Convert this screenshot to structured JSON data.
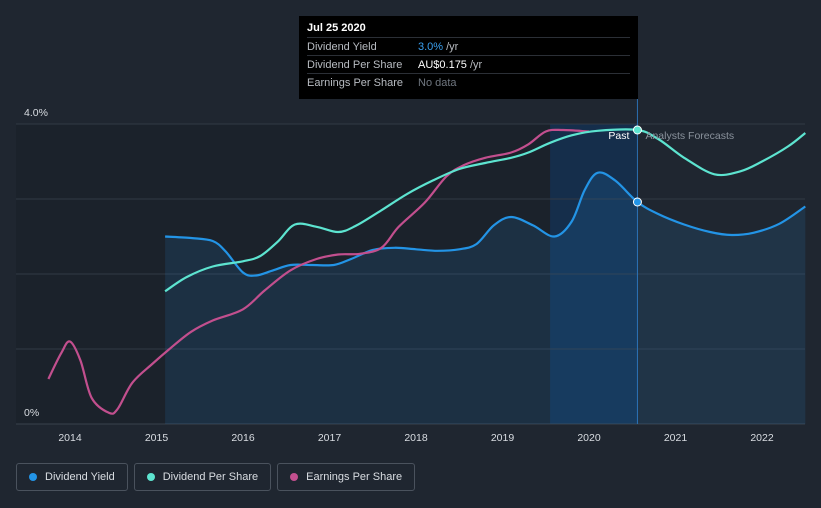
{
  "colors": {
    "background": "#1f2630",
    "dividend_yield": "#2394e6",
    "dividend_per_share": "#5de4d0",
    "earnings_per_share": "#c24f8e"
  },
  "tooltip": {
    "date": "Jul 25 2020",
    "rows": [
      {
        "label": "Dividend Yield",
        "value": "3.0%",
        "unit": "/yr"
      },
      {
        "label": "Dividend Per Share",
        "value": "AU$0.175",
        "unit": "/yr"
      },
      {
        "label": "Earnings Per Share",
        "value": "No data",
        "unit": ""
      }
    ]
  },
  "labels": {
    "past": "Past",
    "forecast": "Analysts Forecasts"
  },
  "legend": [
    {
      "label": "Dividend Yield"
    },
    {
      "label": "Dividend Per Share"
    },
    {
      "label": "Earnings Per Share"
    }
  ],
  "chart_data": {
    "type": "line",
    "title": "",
    "xlabel": "",
    "ylabel": "",
    "xlim": [
      2013.75,
      2022.5
    ],
    "ylim": [
      0,
      4.0
    ],
    "y_ticks": [
      {
        "value": 4.0,
        "label": "4.0%"
      },
      {
        "value": 0,
        "label": "0%"
      }
    ],
    "x_ticks": [
      {
        "value": 2014,
        "label": "2014"
      },
      {
        "value": 2015,
        "label": "2015"
      },
      {
        "value": 2016,
        "label": "2016"
      },
      {
        "value": 2017,
        "label": "2017"
      },
      {
        "value": 2018,
        "label": "2018"
      },
      {
        "value": 2019,
        "label": "2019"
      },
      {
        "value": 2020,
        "label": "2020"
      },
      {
        "value": 2021,
        "label": "2021"
      },
      {
        "value": 2022,
        "label": "2022"
      }
    ],
    "grid": true,
    "past_cutoff": 2020.56,
    "forecast_band_start": 2019.55,
    "series": [
      {
        "name": "Dividend Yield",
        "fill": true,
        "points": [
          [
            2015.1,
            2.5
          ],
          [
            2015.4,
            2.48
          ],
          [
            2015.65,
            2.44
          ],
          [
            2015.8,
            2.3
          ],
          [
            2016.0,
            2.02
          ],
          [
            2016.15,
            1.98
          ],
          [
            2016.35,
            2.05
          ],
          [
            2016.55,
            2.12
          ],
          [
            2016.8,
            2.12
          ],
          [
            2017.05,
            2.12
          ],
          [
            2017.25,
            2.2
          ],
          [
            2017.5,
            2.32
          ],
          [
            2017.75,
            2.35
          ],
          [
            2018.0,
            2.33
          ],
          [
            2018.25,
            2.31
          ],
          [
            2018.5,
            2.33
          ],
          [
            2018.7,
            2.4
          ],
          [
            2018.9,
            2.65
          ],
          [
            2019.1,
            2.76
          ],
          [
            2019.35,
            2.65
          ],
          [
            2019.6,
            2.5
          ],
          [
            2019.8,
            2.7
          ],
          [
            2019.95,
            3.12
          ],
          [
            2020.1,
            3.35
          ],
          [
            2020.3,
            3.25
          ],
          [
            2020.56,
            2.96
          ],
          [
            2020.8,
            2.8
          ],
          [
            2021.1,
            2.66
          ],
          [
            2021.4,
            2.56
          ],
          [
            2021.65,
            2.52
          ],
          [
            2021.9,
            2.55
          ],
          [
            2022.2,
            2.67
          ],
          [
            2022.5,
            2.9
          ]
        ]
      },
      {
        "name": "Dividend Per Share",
        "fill": false,
        "points": [
          [
            2015.1,
            1.77
          ],
          [
            2015.35,
            1.96
          ],
          [
            2015.65,
            2.1
          ],
          [
            2016.0,
            2.17
          ],
          [
            2016.2,
            2.24
          ],
          [
            2016.4,
            2.43
          ],
          [
            2016.6,
            2.66
          ],
          [
            2016.85,
            2.63
          ],
          [
            2017.1,
            2.56
          ],
          [
            2017.3,
            2.64
          ],
          [
            2017.6,
            2.85
          ],
          [
            2017.9,
            3.07
          ],
          [
            2018.2,
            3.25
          ],
          [
            2018.5,
            3.4
          ],
          [
            2018.8,
            3.48
          ],
          [
            2019.1,
            3.55
          ],
          [
            2019.3,
            3.62
          ],
          [
            2019.55,
            3.75
          ],
          [
            2019.8,
            3.85
          ],
          [
            2020.1,
            3.91
          ],
          [
            2020.56,
            3.92
          ],
          [
            2020.8,
            3.8
          ],
          [
            2021.1,
            3.55
          ],
          [
            2021.45,
            3.33
          ],
          [
            2021.75,
            3.37
          ],
          [
            2022.0,
            3.5
          ],
          [
            2022.3,
            3.7
          ],
          [
            2022.5,
            3.88
          ]
        ]
      },
      {
        "name": "Earnings Per Share",
        "fill": false,
        "points": [
          [
            2013.75,
            0.6
          ],
          [
            2013.9,
            0.95
          ],
          [
            2014.0,
            1.1
          ],
          [
            2014.12,
            0.85
          ],
          [
            2014.25,
            0.35
          ],
          [
            2014.45,
            0.15
          ],
          [
            2014.55,
            0.2
          ],
          [
            2014.72,
            0.55
          ],
          [
            2014.95,
            0.8
          ],
          [
            2015.15,
            1.0
          ],
          [
            2015.4,
            1.23
          ],
          [
            2015.65,
            1.38
          ],
          [
            2016.0,
            1.53
          ],
          [
            2016.25,
            1.78
          ],
          [
            2016.55,
            2.05
          ],
          [
            2016.85,
            2.2
          ],
          [
            2017.1,
            2.26
          ],
          [
            2017.35,
            2.27
          ],
          [
            2017.6,
            2.35
          ],
          [
            2017.8,
            2.63
          ],
          [
            2018.1,
            2.95
          ],
          [
            2018.35,
            3.3
          ],
          [
            2018.55,
            3.45
          ],
          [
            2018.8,
            3.55
          ],
          [
            2019.1,
            3.62
          ],
          [
            2019.3,
            3.73
          ],
          [
            2019.5,
            3.9
          ],
          [
            2019.7,
            3.92
          ],
          [
            2020.0,
            3.9
          ]
        ]
      }
    ],
    "markers": [
      {
        "series": "Dividend Yield",
        "x": 2020.56,
        "y": 2.96
      },
      {
        "series": "Dividend Per Share",
        "x": 2020.56,
        "y": 3.92
      }
    ]
  }
}
